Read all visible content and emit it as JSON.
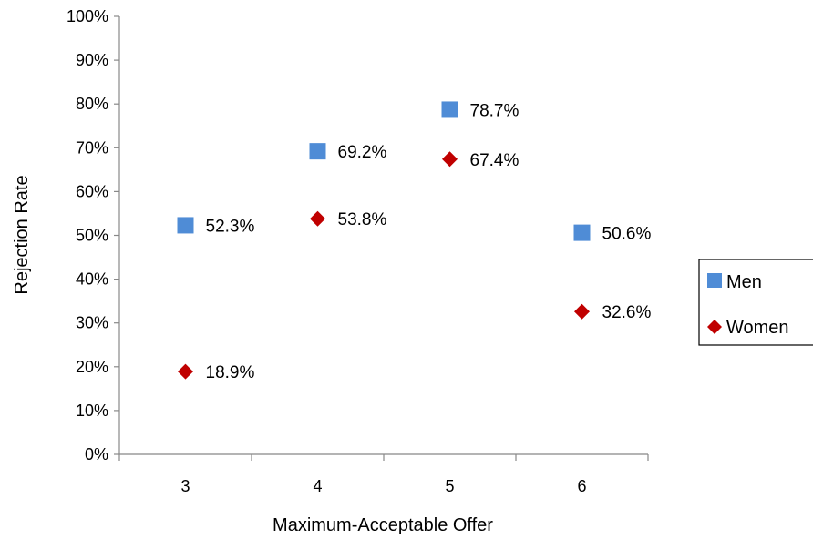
{
  "chart_data": {
    "type": "scatter",
    "xlabel": "Maximum-Acceptable Offer",
    "ylabel": "Rejection Rate",
    "x_ticks": [
      3,
      4,
      5,
      6
    ],
    "x_tick_labels": [
      "3",
      "4",
      "5",
      "6"
    ],
    "xlim": [
      2.5,
      6.5
    ],
    "ylim": [
      0,
      100
    ],
    "y_ticks": [
      0,
      10,
      20,
      30,
      40,
      50,
      60,
      70,
      80,
      90,
      100
    ],
    "y_tick_labels": [
      "0%",
      "10%",
      "20%",
      "30%",
      "40%",
      "50%",
      "60%",
      "70%",
      "80%",
      "90%",
      "100%"
    ],
    "grid": false,
    "legend_position": "right",
    "series": [
      {
        "name": "Men",
        "marker": "square",
        "color": "#4F8CD6",
        "x": [
          3,
          4,
          5,
          6
        ],
        "y": [
          52.3,
          69.2,
          78.7,
          50.6
        ],
        "labels": [
          "52.3%",
          "69.2%",
          "78.7%",
          "50.6%"
        ]
      },
      {
        "name": "Women",
        "marker": "diamond",
        "color": "#C00000",
        "x": [
          3,
          4,
          5,
          6
        ],
        "y": [
          18.9,
          53.8,
          67.4,
          32.6
        ],
        "labels": [
          "18.9%",
          "53.8%",
          "67.4%",
          "32.6%"
        ]
      }
    ]
  }
}
